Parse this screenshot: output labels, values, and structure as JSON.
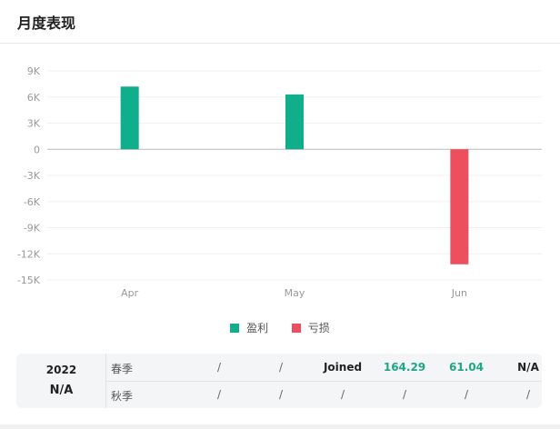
{
  "header": {
    "title": "月度表现"
  },
  "chart_data": {
    "type": "bar",
    "categories": [
      "Apr",
      "May",
      "Jun"
    ],
    "values": [
      7200,
      6300,
      -13200
    ],
    "yticks": [
      "9K",
      "6K",
      "3K",
      "0",
      "-3K",
      "-6K",
      "-9K",
      "-12K",
      "-15K"
    ],
    "ylim": [
      -15000,
      9000
    ],
    "grid": true,
    "legend": {
      "position": "bottom",
      "profit_label": "盈利",
      "loss_label": "亏损"
    },
    "colors": {
      "profit": "#11ae8b",
      "loss": "#ed4f5e"
    }
  },
  "summary": {
    "year": "2022",
    "year_value": "N/A",
    "rows": [
      {
        "label": "春季",
        "cells": [
          "/",
          "/",
          "Joined",
          "164.29",
          "61.04",
          "N/A"
        ]
      },
      {
        "label": "秋季",
        "cells": [
          "/",
          "/",
          "/",
          "/",
          "/",
          "/"
        ]
      }
    ]
  }
}
